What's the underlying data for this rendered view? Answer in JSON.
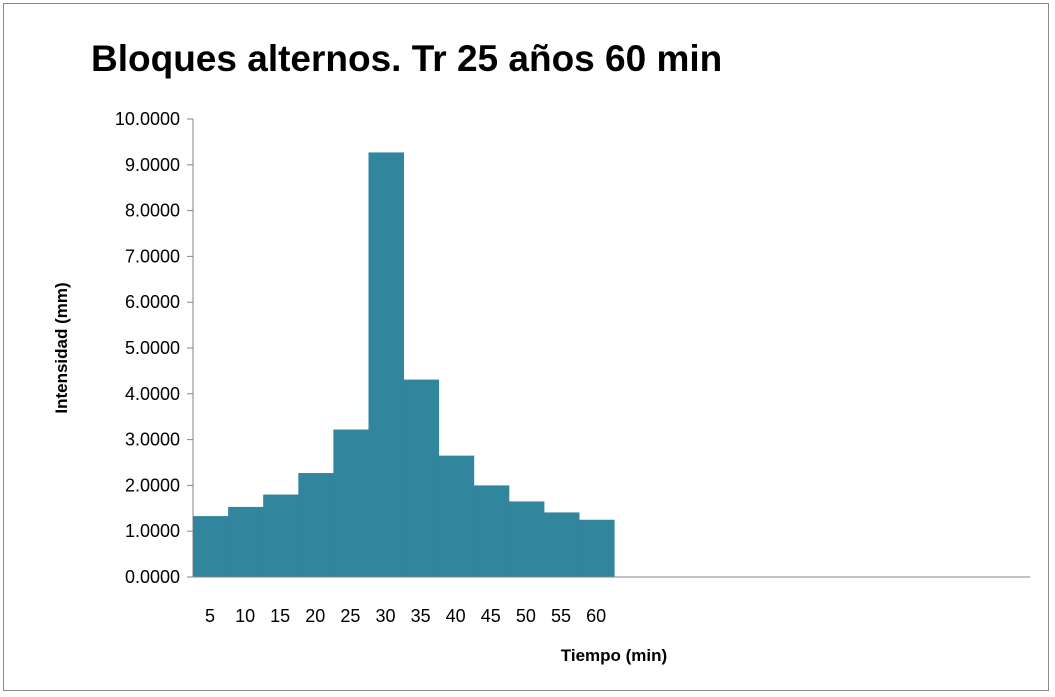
{
  "chart_data": {
    "type": "bar",
    "title": "Bloques alternos. Tr 25 años 60 min",
    "xlabel": "Tiempo (min)",
    "ylabel": "Intensidad  (mm)",
    "categories": [
      "5",
      "10",
      "15",
      "20",
      "25",
      "30",
      "35",
      "40",
      "45",
      "50",
      "55",
      "60"
    ],
    "values": [
      1.33,
      1.53,
      1.8,
      2.27,
      3.22,
      9.27,
      4.31,
      2.65,
      2.0,
      1.65,
      1.41,
      1.25
    ],
    "ylim": [
      0,
      10
    ],
    "ytick_labels": [
      "0.0000",
      "1.0000",
      "2.0000",
      "3.0000",
      "4.0000",
      "5.0000",
      "6.0000",
      "7.0000",
      "8.0000",
      "9.0000",
      "10.0000"
    ],
    "grid": false,
    "legend": "none",
    "bar_color": "#31859C"
  }
}
